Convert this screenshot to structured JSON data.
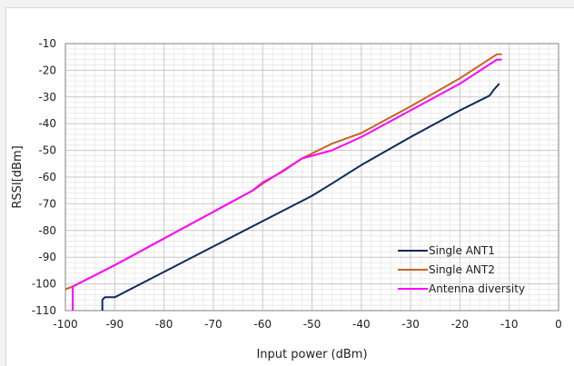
{
  "chart_data": {
    "type": "line",
    "title": "",
    "xlabel": "Input power (dBm)",
    "ylabel": "RSSI[dBm]",
    "xlim": [
      -100,
      0
    ],
    "ylim": [
      -110,
      -10
    ],
    "x_ticks": [
      -100,
      -90,
      -80,
      -70,
      -60,
      -50,
      -40,
      -30,
      -20,
      -10,
      0
    ],
    "y_ticks": [
      -10,
      -20,
      -30,
      -40,
      -50,
      -60,
      -70,
      -80,
      -90,
      -100,
      -110
    ],
    "grid": true,
    "legend": "bottom-right",
    "series": [
      {
        "name": "Single ANT1",
        "color": "#0d2a5c",
        "points": [
          [
            -92.5,
            -110
          ],
          [
            -92.5,
            -106
          ],
          [
            -92,
            -105
          ],
          [
            -90,
            -105
          ],
          [
            -80,
            -95.5
          ],
          [
            -70,
            -86
          ],
          [
            -60,
            -76.5
          ],
          [
            -50,
            -67
          ],
          [
            -46,
            -62.5
          ],
          [
            -40,
            -55.5
          ],
          [
            -30,
            -45
          ],
          [
            -20,
            -35
          ],
          [
            -14,
            -29.5
          ],
          [
            -13,
            -27
          ],
          [
            -12,
            -25
          ]
        ]
      },
      {
        "name": "Single ANT2",
        "color": "#c8641e",
        "points": [
          [
            -100,
            -102
          ],
          [
            -98.5,
            -101
          ],
          [
            -90,
            -93
          ],
          [
            -80,
            -83
          ],
          [
            -70,
            -73
          ],
          [
            -62,
            -65
          ],
          [
            -60,
            -62.5
          ],
          [
            -52,
            -53
          ],
          [
            -46,
            -47.5
          ],
          [
            -40,
            -43.5
          ],
          [
            -30,
            -33.5
          ],
          [
            -20,
            -23
          ],
          [
            -12.5,
            -14
          ],
          [
            -11.5,
            -14
          ]
        ]
      },
      {
        "name": "Antenna diversity",
        "color": "#ff00ff",
        "points": [
          [
            -98.5,
            -110
          ],
          [
            -98.5,
            -101
          ],
          [
            -90,
            -93
          ],
          [
            -80,
            -83
          ],
          [
            -70,
            -73
          ],
          [
            -62,
            -65
          ],
          [
            -60,
            -62
          ],
          [
            -56,
            -58
          ],
          [
            -52,
            -53
          ],
          [
            -50,
            -52
          ],
          [
            -46,
            -50
          ],
          [
            -40,
            -45
          ],
          [
            -30,
            -35
          ],
          [
            -20,
            -25
          ],
          [
            -12.5,
            -16
          ],
          [
            -11.5,
            -16
          ]
        ]
      }
    ]
  }
}
